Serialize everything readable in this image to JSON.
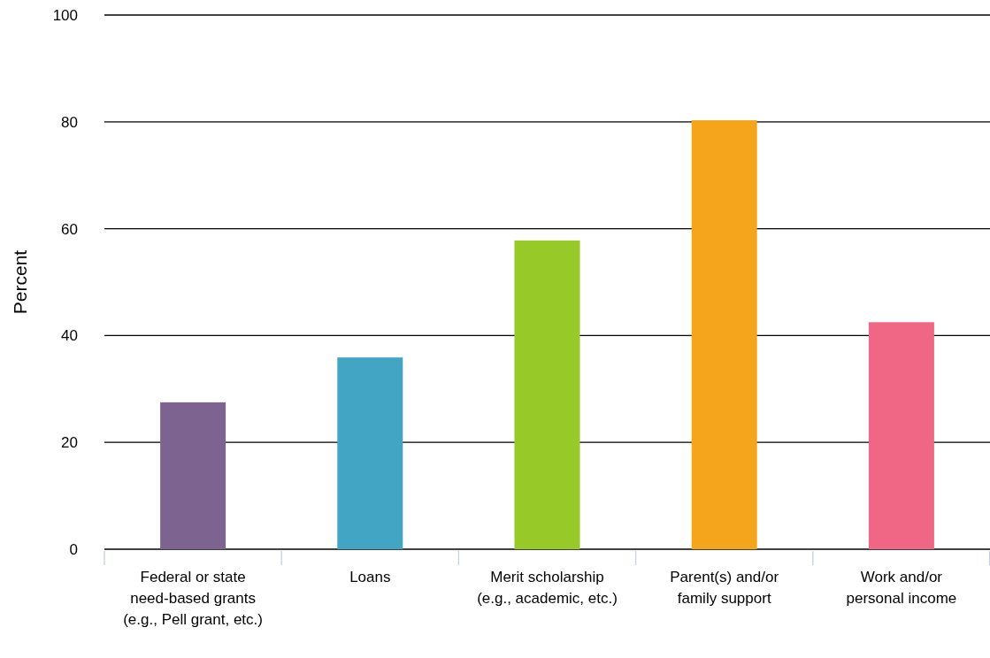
{
  "chart_data": {
    "type": "bar",
    "ylabel": "Percent",
    "categories": [
      "Federal or state need-based grants (e.g., Pell grant, etc.)",
      "Loans",
      "Merit scholarship (e.g., academic, etc.)",
      "Parent(s) and/or family support",
      "Work and/or personal income"
    ],
    "values": [
      27.5,
      35.9,
      57.8,
      80.3,
      42.5
    ],
    "colors": [
      "#7d6490",
      "#42a5c3",
      "#97c928",
      "#f4a51c",
      "#f06685"
    ],
    "ylim": [
      0,
      100
    ],
    "yticks": [
      0,
      20,
      40,
      60,
      80,
      100
    ],
    "grid": "y"
  }
}
